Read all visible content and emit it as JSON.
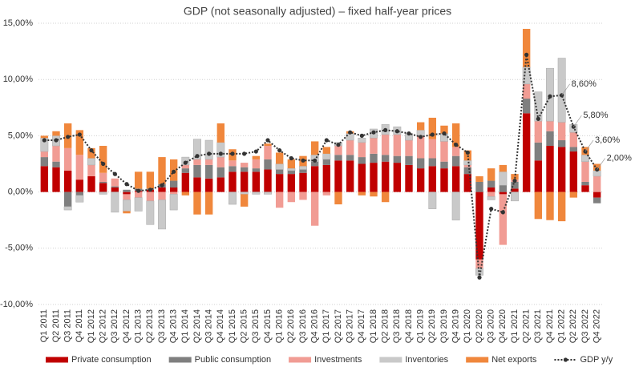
{
  "chart_data": {
    "type": "bar",
    "title": "GDP (not seasonally adjusted) – fixed half-year prices",
    "categories": [
      "Q1 2011",
      "Q2 2011",
      "Q3 2011",
      "Q4 2011",
      "Q1 2012",
      "Q2 2012",
      "Q3 2012",
      "Q4 2012",
      "Q1 2013",
      "Q2 2013",
      "Q3 2013",
      "Q4 2013",
      "Q1 2014",
      "Q2 2014",
      "Q3 2014",
      "Q4 2014",
      "Q1 2015",
      "Q2 2015",
      "Q3 2015",
      "Q4 2015",
      "Q1 2016",
      "Q2 2016",
      "Q3 2016",
      "Q4 2016",
      "Q1 2017",
      "Q2 2017",
      "Q3 2017",
      "Q4 2017",
      "Q1 2018",
      "Q2 2018",
      "Q3 2018",
      "Q4 2018",
      "Q1 2019",
      "Q2 2019",
      "Q3 2019",
      "Q4 2019",
      "Q1 2020",
      "Q2 2020",
      "Q3 2020",
      "Q4 2020",
      "Q1 2021",
      "Q2 2021",
      "Q3 2021",
      "Q4 2021",
      "Q1 2022",
      "Q2 2022",
      "Q3 2022",
      "Q4 2022"
    ],
    "series": [
      {
        "name": "Private consumption",
        "type": "bar",
        "color": "#c00000",
        "values": [
          2.3,
          2.2,
          1.9,
          1.1,
          1.4,
          0.8,
          0.4,
          -0.2,
          0.1,
          0.2,
          0.4,
          0.4,
          1.7,
          1.3,
          1.2,
          1.3,
          1.8,
          1.8,
          1.8,
          2.0,
          1.6,
          1.6,
          1.7,
          2.3,
          2.4,
          2.8,
          2.8,
          2.5,
          2.6,
          2.7,
          2.6,
          2.4,
          2.1,
          2.3,
          2.1,
          2.3,
          1.6,
          -6.0,
          0.4,
          -0.2,
          0.3,
          7.0,
          2.8,
          4.1,
          4.0,
          3.6,
          0.6,
          -0.5
        ]
      },
      {
        "name": "Public consumption",
        "type": "bar",
        "color": "#7f7f7f",
        "values": [
          0.8,
          0.5,
          -1.3,
          -0.3,
          0.0,
          0.1,
          0.1,
          0.2,
          0.2,
          0.1,
          0.3,
          0.6,
          0.4,
          1.1,
          1.2,
          0.9,
          0.5,
          0.4,
          0.3,
          0.9,
          0.4,
          0.3,
          0.3,
          0.4,
          0.5,
          0.5,
          0.5,
          0.6,
          0.8,
          0.6,
          0.6,
          0.8,
          0.9,
          0.7,
          0.6,
          0.9,
          0.6,
          0.9,
          0.6,
          0.6,
          0.6,
          1.3,
          1.6,
          1.3,
          0.6,
          0.4,
          0.3,
          -0.5
        ]
      },
      {
        "name": "Investments",
        "type": "bar",
        "color": "#f19c94",
        "values": [
          0.5,
          1.4,
          2.0,
          2.2,
          1.0,
          0.8,
          0.7,
          -0.5,
          -0.5,
          -0.8,
          -0.7,
          -0.2,
          0.3,
          0.5,
          0.5,
          0.9,
          0.5,
          0.4,
          0.8,
          1.2,
          -1.4,
          -0.9,
          -0.7,
          -3.0,
          -0.3,
          0.8,
          1.3,
          1.3,
          1.4,
          1.8,
          1.9,
          1.4,
          2.0,
          1.7,
          1.8,
          0.8,
          0.2,
          -0.8,
          -0.4,
          -4.5,
          0.2,
          1.3,
          1.9,
          0.9,
          1.6,
          1.3,
          1.8,
          1.4
        ]
      },
      {
        "name": "Inventories",
        "type": "bar",
        "color": "#c9c9c9",
        "values": [
          1.2,
          0.9,
          -0.3,
          -0.6,
          0.6,
          -0.2,
          -1.8,
          -1.0,
          -1.2,
          -2.1,
          -2.6,
          -1.4,
          0.7,
          1.8,
          1.7,
          1.3,
          -1.1,
          -0.2,
          -0.2,
          -0.2,
          0.5,
          0.2,
          0.3,
          0.6,
          0.5,
          0.3,
          0.6,
          0.4,
          0.8,
          0.9,
          0.7,
          0.6,
          0.5,
          -1.5,
          0.7,
          -2.5,
          0.4,
          -0.6,
          -0.3,
          1.2,
          -0.8,
          1.5,
          2.6,
          4.7,
          5.7,
          0.7,
          0.6,
          0.5
        ]
      },
      {
        "name": "Net exports",
        "type": "bar",
        "color": "#f0873c",
        "values": [
          0.2,
          0.4,
          2.2,
          2.2,
          0.9,
          2.4,
          0.0,
          -0.2,
          1.5,
          1.5,
          2.4,
          1.9,
          -0.3,
          -2.0,
          -2.0,
          1.7,
          1.0,
          -1.1,
          0.3,
          0.2,
          1.0,
          0.8,
          0.9,
          1.2,
          0.6,
          -1.1,
          0.2,
          -0.3,
          -0.4,
          -0.9,
          0.0,
          0.0,
          0.7,
          1.9,
          0.7,
          2.1,
          0.9,
          0.5,
          1.1,
          0.6,
          0.5,
          3.4,
          -2.4,
          -2.5,
          -2.6,
          -0.5,
          0.7,
          0.6
        ]
      },
      {
        "name": "GDP y/y",
        "type": "line",
        "color": "#333333",
        "values": [
          4.6,
          4.6,
          4.9,
          5.1,
          3.7,
          2.5,
          1.6,
          0.7,
          0.1,
          0.2,
          0.6,
          1.8,
          2.6,
          3.2,
          3.4,
          3.4,
          3.4,
          3.4,
          3.6,
          4.6,
          3.7,
          3.0,
          2.8,
          2.8,
          4.6,
          4.2,
          5.3,
          5.0,
          5.3,
          5.5,
          5.4,
          5.2,
          4.9,
          5.1,
          5.2,
          4.2,
          3.5,
          -7.6,
          -1.5,
          -1.8,
          1.0,
          12.2,
          6.5,
          8.5,
          8.6,
          5.8,
          3.6,
          2.0
        ],
        "value_labels": [
          null,
          null,
          null,
          null,
          null,
          null,
          null,
          null,
          null,
          null,
          null,
          null,
          null,
          null,
          null,
          null,
          null,
          null,
          null,
          null,
          null,
          null,
          null,
          null,
          null,
          null,
          null,
          null,
          null,
          null,
          null,
          null,
          null,
          null,
          null,
          null,
          null,
          null,
          null,
          null,
          null,
          null,
          null,
          null,
          "8,60%",
          "5,80%",
          "3,60%",
          "2,00%"
        ]
      }
    ],
    "ylim": [
      -10,
      15
    ],
    "yticks": [
      {
        "value": -10,
        "label": "-10,00%"
      },
      {
        "value": -5,
        "label": "-5,00%"
      },
      {
        "value": 0,
        "label": "0,00%"
      },
      {
        "value": 5,
        "label": "5,00%"
      },
      {
        "value": 10,
        "label": "10,00%"
      },
      {
        "value": 15,
        "label": "15,00%"
      }
    ],
    "grid": true
  }
}
